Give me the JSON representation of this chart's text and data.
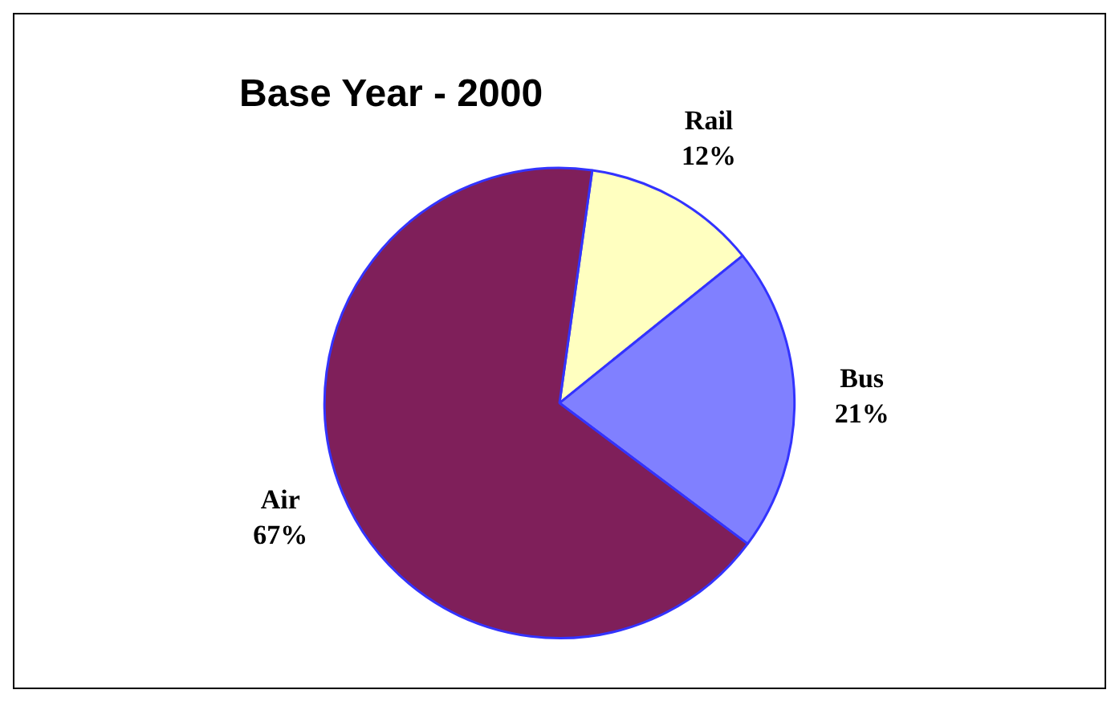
{
  "chart_data": {
    "type": "pie",
    "title": "Base Year - 2000",
    "categories": [
      "Rail",
      "Bus",
      "Air"
    ],
    "values": [
      12,
      21,
      67
    ],
    "value_labels": [
      "12%",
      "21%",
      "67%"
    ],
    "colors": [
      "#ffffc0",
      "#8080ff",
      "#7f1f5a"
    ],
    "legend": false
  }
}
